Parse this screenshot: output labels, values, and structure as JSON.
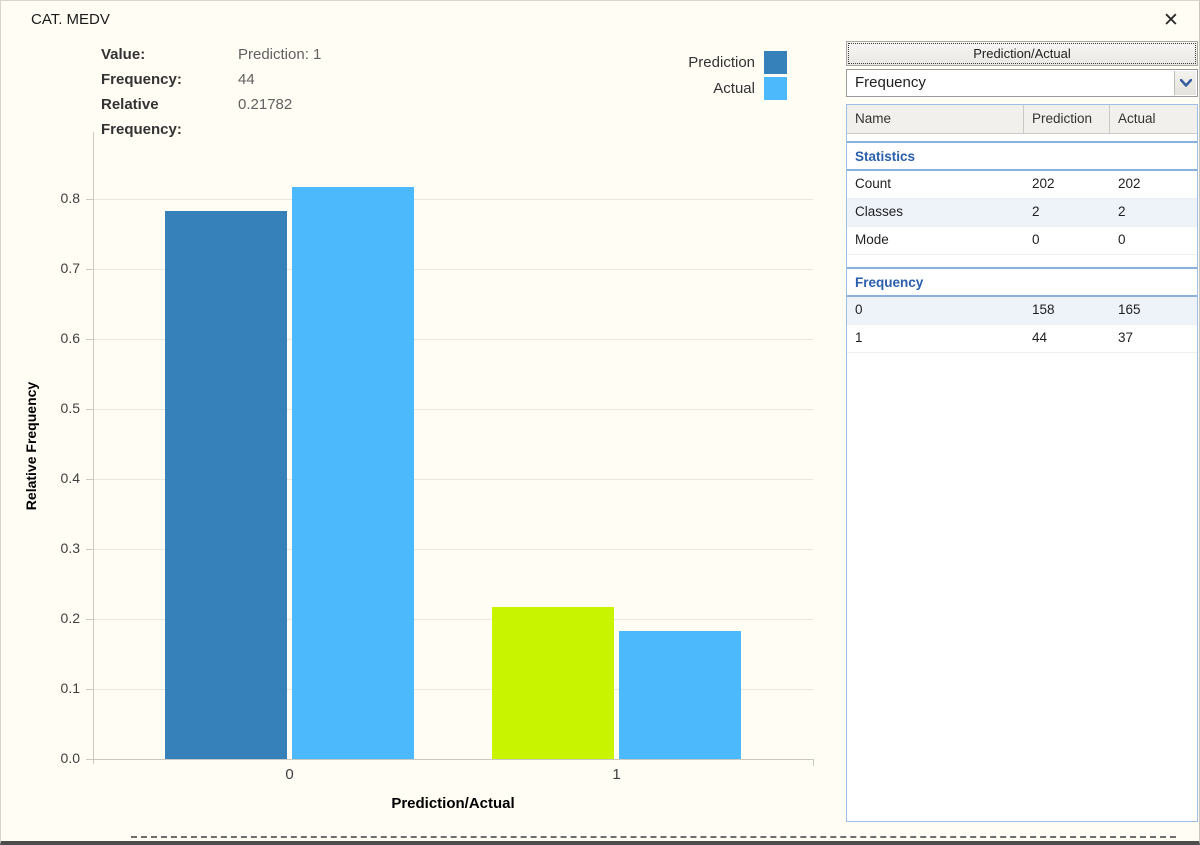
{
  "window": {
    "title": "CAT. MEDV"
  },
  "icons": {
    "close": "✕",
    "dropdown_chevron": "chevron-down"
  },
  "info": {
    "rows": [
      {
        "label": "Value:",
        "value": "Prediction: 1"
      },
      {
        "label": "Frequency:",
        "value": "44"
      },
      {
        "label": "Relative Frequency:",
        "value": "0.21782"
      }
    ]
  },
  "chart_data": {
    "type": "bar",
    "categories": [
      "0",
      "1"
    ],
    "series": [
      {
        "name": "Prediction",
        "color": "#3781bb",
        "values": [
          0.78218,
          0.21782
        ],
        "frequencies": [
          158,
          44
        ]
      },
      {
        "name": "Actual",
        "color": "#4cb9fc",
        "values": [
          0.81683,
          0.18317
        ],
        "frequencies": [
          165,
          37
        ]
      }
    ],
    "highlighted_bar": {
      "series": "Prediction",
      "category": "1",
      "color": "#c8f400"
    },
    "title": "",
    "xlabel": "Prediction/Actual",
    "ylabel": "Relative Frequency",
    "ylim": [
      0,
      0.88
    ],
    "yticks": [
      0,
      0.1,
      0.2,
      0.3,
      0.4,
      0.5,
      0.6,
      0.7,
      0.8
    ],
    "grid": true,
    "legend_position": "top-right",
    "legend_entries": [
      "Prediction",
      "Actual"
    ]
  },
  "panel": {
    "button_label": "Prediction/Actual",
    "dropdown_value": "Frequency",
    "table": {
      "headers": [
        "Name",
        "Prediction",
        "Actual"
      ],
      "groups": [
        {
          "name": "Statistics",
          "rows": [
            {
              "name": "Count",
              "prediction": "202",
              "actual": "202"
            },
            {
              "name": "Classes",
              "prediction": "2",
              "actual": "2"
            },
            {
              "name": "Mode",
              "prediction": "0",
              "actual": "0"
            }
          ]
        },
        {
          "name": "Frequency",
          "rows": [
            {
              "name": "0",
              "prediction": "158",
              "actual": "165"
            },
            {
              "name": "1",
              "prediction": "44",
              "actual": "37"
            }
          ]
        }
      ]
    }
  }
}
